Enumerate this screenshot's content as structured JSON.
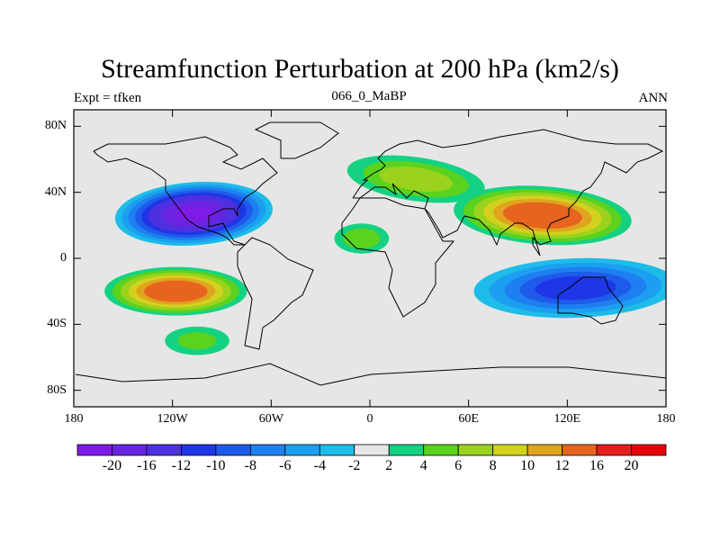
{
  "chart_data": {
    "type": "heatmap",
    "title": "Streamfunction Perturbation at 200 hPa (km2/s)",
    "subtitle_left": "Expt = tfken",
    "subtitle_center": "066_0_MaBP",
    "subtitle_right": "ANN",
    "x_ticks": [
      "180",
      "120W",
      "60W",
      "0",
      "60E",
      "120E",
      "180"
    ],
    "x_tick_values": [
      -180,
      -120,
      -60,
      0,
      60,
      120,
      180
    ],
    "y_ticks": [
      "80N",
      "40N",
      "0",
      "40S",
      "80S"
    ],
    "y_tick_values": [
      80,
      40,
      0,
      -40,
      -80
    ],
    "xlim": [
      -180,
      180
    ],
    "ylim": [
      -90,
      90
    ],
    "colorbar": {
      "levels": [
        -20,
        -16,
        -12,
        -10,
        -8,
        -6,
        -4,
        -2,
        2,
        4,
        6,
        8,
        10,
        12,
        16,
        20
      ],
      "labels": [
        "-20",
        "-16",
        "-12",
        "-10",
        "-8",
        "-6",
        "-4",
        "-2",
        "2",
        "4",
        "6",
        "8",
        "10",
        "12",
        "16",
        "20"
      ],
      "colors": [
        "#7e1be6",
        "#6a24e0",
        "#4f30e0",
        "#1e36e6",
        "#1f5bea",
        "#1e7ff0",
        "#1c9ff0",
        "#1ebce8",
        "#e6e6e6",
        "#14d282",
        "#5ad21e",
        "#9ad21e",
        "#d2d21e",
        "#e0a51e",
        "#e6641e",
        "#e61e1e",
        "#e6000a"
      ]
    },
    "features": [
      {
        "name": "north-pacific-low",
        "lon": -107,
        "lat": 27,
        "peak": -20
      },
      {
        "name": "south-pacific-high",
        "lon": -118,
        "lat": -20,
        "peak": 15
      },
      {
        "name": "asia-high",
        "lon": 105,
        "lat": 26,
        "peak": 15
      },
      {
        "name": "north-atlantic-eurasia-high",
        "lon": 28,
        "lat": 48,
        "peak": 7
      },
      {
        "name": "indian-ocean-low",
        "lon": 125,
        "lat": -18,
        "peak": -11
      },
      {
        "name": "africa-high",
        "lon": -5,
        "lat": 12,
        "peak": 5
      },
      {
        "name": "south-america-high",
        "lon": -105,
        "lat": -50,
        "peak": 4
      }
    ]
  }
}
